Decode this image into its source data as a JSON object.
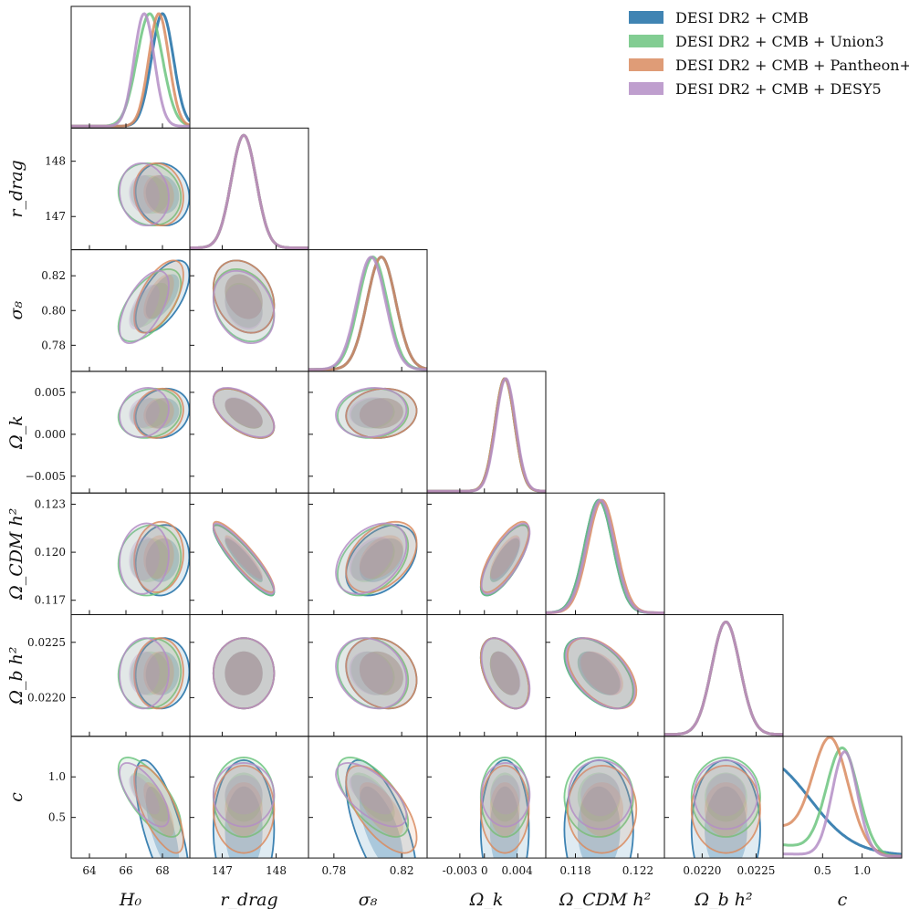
{
  "chart_data": {
    "type": "corner",
    "parameters": [
      {
        "key": "H0",
        "label": "H₀",
        "ticks": [
          "64",
          "66",
          "68"
        ],
        "tick_values": [
          64,
          66,
          68
        ],
        "range": [
          63,
          69.5
        ]
      },
      {
        "key": "rdrag",
        "label": "r_drag",
        "ticks": [
          "147",
          "148"
        ],
        "tick_values": [
          147,
          148
        ],
        "range": [
          146.4,
          148.6
        ]
      },
      {
        "key": "sigma8",
        "label": "σ₈",
        "ticks": [
          "0.78",
          "0.82"
        ],
        "tick_values": [
          0.78,
          0.82
        ],
        "range": [
          0.765,
          0.835
        ]
      },
      {
        "key": "Omegak",
        "label": "Ω_k",
        "ticks": [
          "-0.003",
          "0",
          "0.004"
        ],
        "tick_values": [
          -0.003,
          0,
          0.004
        ],
        "range": [
          -0.007,
          0.0075
        ]
      },
      {
        "key": "OmegaCDMh2",
        "label": "Ω_CDM h²",
        "ticks": [
          "0.118",
          "0.122"
        ],
        "tick_values": [
          0.118,
          0.122
        ],
        "range": [
          0.1161,
          0.1237
        ]
      },
      {
        "key": "Omegabh2",
        "label": "Ω_b h²",
        "ticks": [
          "0.0220",
          "0.0225"
        ],
        "tick_values": [
          0.022,
          0.0225
        ],
        "range": [
          0.02165,
          0.02275
        ]
      },
      {
        "key": "c",
        "label": "c",
        "ticks": [
          "0.5",
          "1.0"
        ],
        "tick_values": [
          0.5,
          1.0
        ],
        "range": [
          0.0,
          1.5
        ]
      }
    ],
    "diag_y_ticks": [
      {
        "row": "rdrag",
        "ticks": [
          "147",
          "148"
        ]
      },
      {
        "row": "sigma8",
        "ticks": [
          "0.78",
          "0.80",
          "0.82"
        ]
      },
      {
        "row": "Omegak",
        "ticks": [
          "−0.005",
          "0.000",
          "0.005"
        ]
      },
      {
        "row": "OmegaCDMh2",
        "ticks": [
          "0.117",
          "0.120",
          "0.123"
        ]
      },
      {
        "row": "Omegabh2",
        "ticks": [
          "0.0220",
          "0.0225"
        ]
      },
      {
        "row": "c",
        "ticks": [
          "0.5",
          "1.0"
        ]
      }
    ],
    "y_tick_values": {
      "rdrag": [
        147,
        148
      ],
      "sigma8": [
        0.78,
        0.8,
        0.82
      ],
      "Omegak": [
        -0.005,
        0.0,
        0.005
      ],
      "OmegaCDMh2": [
        0.117,
        0.12,
        0.123
      ],
      "Omegabh2": [
        0.022,
        0.0225
      ],
      "c": [
        0.5,
        1.0
      ]
    },
    "series": [
      {
        "name": "DESI DR2 + CMB",
        "color": "#1f6fa6",
        "mean": {
          "H0": 68.0,
          "rdrag": 147.4,
          "sigma8": 0.808,
          "Omegak": 0.0025,
          "OmegaCDMh2": 0.1195,
          "Omegabh2": 0.02222,
          "c": 0.35
        },
        "sd": {
          "H0": 0.6,
          "rdrag": 0.23,
          "sigma8": 0.0085,
          "Omegak": 0.0012,
          "OmegaCDMh2": 0.0009,
          "Omegabh2": 0.00013,
          "c": 0.35
        }
      },
      {
        "name": "DESI DR2 + CMB + Union3",
        "color": "#6cc47f",
        "mean": {
          "H0": 67.3,
          "rdrag": 147.4,
          "sigma8": 0.803,
          "Omegak": 0.0025,
          "OmegaCDMh2": 0.1195,
          "Omegabh2": 0.02222,
          "c": 0.75
        },
        "sd": {
          "H0": 0.7,
          "rdrag": 0.23,
          "sigma8": 0.0085,
          "Omegak": 0.0012,
          "OmegaCDMh2": 0.0009,
          "Omegabh2": 0.00013,
          "c": 0.2
        }
      },
      {
        "name": "DESI DR2 + CMB + Pantheon+",
        "color": "#d98b5f",
        "mean": {
          "H0": 67.8,
          "rdrag": 147.4,
          "sigma8": 0.808,
          "Omegak": 0.0025,
          "OmegaCDMh2": 0.1197,
          "Omegabh2": 0.02222,
          "c": 0.6
        },
        "sd": {
          "H0": 0.55,
          "rdrag": 0.23,
          "sigma8": 0.0085,
          "Omegak": 0.0012,
          "OmegaCDMh2": 0.0009,
          "Omegabh2": 0.00013,
          "c": 0.22
        }
      },
      {
        "name": "DESI DR2 + CMB + DESY5",
        "color": "#b48ec6",
        "mean": {
          "H0": 67.0,
          "rdrag": 147.4,
          "sigma8": 0.802,
          "Omegak": 0.0026,
          "OmegaCDMh2": 0.1196,
          "Omegabh2": 0.02222,
          "c": 0.78
        },
        "sd": {
          "H0": 0.55,
          "rdrag": 0.23,
          "sigma8": 0.0085,
          "Omegak": 0.0012,
          "OmegaCDMh2": 0.0009,
          "Omegabh2": 0.00013,
          "c": 0.16
        }
      }
    ],
    "correlations": {
      "H0-sigma8": 0.6,
      "H0-Omegak": 0.15,
      "H0-OmegaCDMh2": 0.1,
      "H0-Omegabh2": 0.05,
      "H0-c": -0.7,
      "rdrag-sigma8": -0.25,
      "rdrag-Omegak": -0.55,
      "rdrag-OmegaCDMh2": -0.9,
      "rdrag-Omegabh2": 0.0,
      "rdrag-c": 0.0,
      "sigma8-Omegak": 0.1,
      "sigma8-OmegaCDMh2": 0.4,
      "sigma8-Omegabh2": -0.2,
      "sigma8-c": -0.65,
      "Omegak-OmegaCDMh2": 0.75,
      "Omegak-Omegabh2": -0.45,
      "Omegak-c": 0.0,
      "OmegaCDMh2-Omegabh2": -0.5,
      "OmegaCDMh2-c": 0.0,
      "Omegabh2-c": 0.0,
      "H0-rdrag": -0.1
    },
    "legend": {
      "placement": "top-right",
      "entries": [
        "DESI DR2 + CMB",
        "DESI DR2 + CMB + Union3",
        "DESI DR2 + CMB + Pantheon+",
        "DESI DR2 + CMB + DESY5"
      ]
    }
  }
}
